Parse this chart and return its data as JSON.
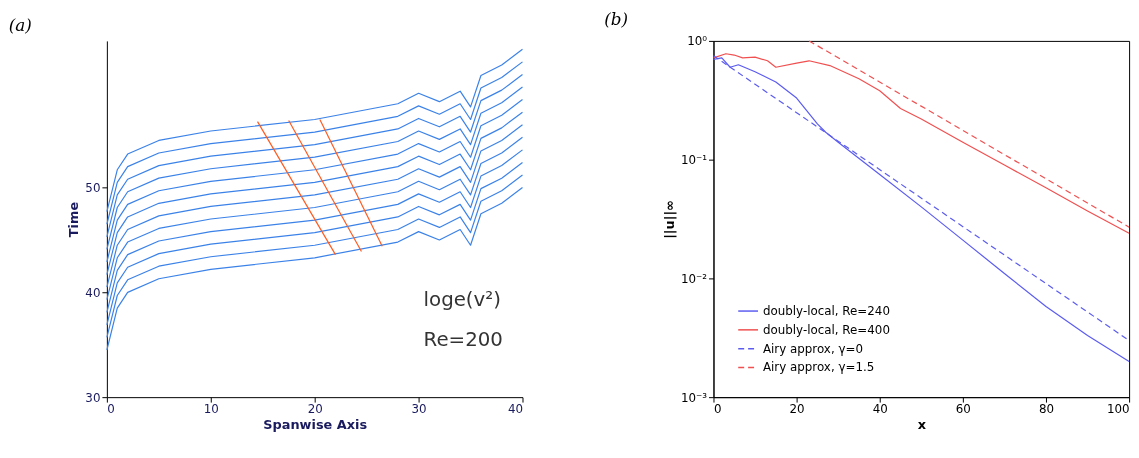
{
  "chart_data": [
    {
      "type": "line",
      "title": "(a)",
      "xlabel": "Spanwise Axis",
      "ylabel": "Time",
      "xlim": [
        0,
        40
      ],
      "xticks": [
        0,
        10,
        20,
        30,
        40
      ],
      "ylim": [
        30,
        64
      ],
      "yticks": [
        30,
        40,
        50
      ],
      "grid": false,
      "legend": false,
      "marker": "none",
      "line_style": "solid",
      "annotations": [
        "loge(v²)",
        "Re=200"
      ],
      "x": [
        0,
        1,
        2,
        5,
        10,
        20,
        28,
        30,
        32,
        34,
        35,
        36,
        38,
        40
      ],
      "series": [
        {
          "color": "#3b82e8",
          "values": [
            34.5,
            38.5,
            40,
            41.3,
            42.2,
            43.3,
            44.8,
            45.8,
            45,
            46,
            44.5,
            47.5,
            48.5,
            50
          ]
        },
        {
          "color": "#3b82e8",
          "values": [
            35.7,
            39.7,
            41.2,
            42.5,
            43.4,
            44.5,
            46,
            47,
            46.2,
            47.2,
            45.7,
            48.7,
            49.7,
            51.2
          ]
        },
        {
          "color": "#3b82e8",
          "values": [
            36.9,
            40.9,
            42.4,
            43.7,
            44.6,
            45.7,
            47.2,
            48.2,
            47.4,
            48.4,
            46.9,
            49.9,
            50.9,
            52.4
          ]
        },
        {
          "color": "#3b82e8",
          "values": [
            38.1,
            42.1,
            43.6,
            44.9,
            45.8,
            46.9,
            48.4,
            49.4,
            48.6,
            49.6,
            48.1,
            51.1,
            52.1,
            53.6
          ]
        },
        {
          "color": "#3b82e8",
          "values": [
            39.3,
            43.3,
            44.8,
            46.1,
            47,
            48.1,
            49.6,
            50.6,
            49.8,
            50.8,
            49.3,
            52.3,
            53.3,
            54.8
          ]
        },
        {
          "color": "#3b82e8",
          "values": [
            40.5,
            44.5,
            46,
            47.3,
            48.2,
            49.3,
            50.8,
            51.8,
            51,
            52,
            50.5,
            53.5,
            54.5,
            56
          ]
        },
        {
          "color": "#3b82e8",
          "values": [
            41.7,
            45.7,
            47.2,
            48.5,
            49.4,
            50.5,
            52,
            53,
            52.2,
            53.2,
            51.7,
            54.7,
            55.7,
            57.2
          ]
        },
        {
          "color": "#3b82e8",
          "values": [
            42.9,
            46.9,
            48.4,
            49.7,
            50.6,
            51.7,
            53.2,
            54.2,
            53.4,
            54.4,
            52.9,
            55.9,
            56.9,
            58.4
          ]
        },
        {
          "color": "#3b82e8",
          "values": [
            44.1,
            48.1,
            49.6,
            50.9,
            51.8,
            52.9,
            54.4,
            55.4,
            54.6,
            55.6,
            54.1,
            57.1,
            58.1,
            59.6
          ]
        },
        {
          "color": "#3b82e8",
          "values": [
            45.3,
            49.3,
            50.8,
            52.1,
            53,
            54.1,
            55.6,
            56.6,
            55.8,
            56.8,
            55.3,
            58.3,
            59.3,
            60.8
          ]
        },
        {
          "color": "#3b82e8",
          "values": [
            46.5,
            50.5,
            52,
            53.3,
            54.2,
            55.3,
            56.8,
            57.8,
            57,
            58,
            56.5,
            59.5,
            60.5,
            62
          ]
        },
        {
          "color": "#3b82e8",
          "values": [
            47.7,
            51.7,
            53.2,
            54.5,
            55.4,
            56.5,
            58,
            59,
            58.2,
            59.2,
            57.7,
            60.7,
            61.7,
            63.2
          ]
        },
        {
          "color": "#ff5a1f",
          "x": [
            14.5,
            22
          ],
          "values": [
            56.3,
            43.6
          ]
        },
        {
          "color": "#ff5a1f",
          "x": [
            17.5,
            24.5
          ],
          "values": [
            56.4,
            43.9
          ]
        },
        {
          "color": "#ff5a1f",
          "x": [
            20.5,
            26.5
          ],
          "values": [
            56.5,
            44.4
          ]
        }
      ]
    },
    {
      "type": "line",
      "title": "(b)",
      "xlabel": "x",
      "ylabel": "||u||∞",
      "log": "y",
      "xlim": [
        0,
        100
      ],
      "xticks": [
        0,
        20,
        40,
        60,
        80,
        100
      ],
      "ylim": [
        0.001,
        1
      ],
      "yticks": [
        {
          "value": 0.001,
          "label": "10⁻³"
        },
        {
          "value": 0.01,
          "label": "10⁻²"
        },
        {
          "value": 0.1,
          "label": "10⁻¹"
        },
        {
          "value": 1,
          "label": "10⁰"
        }
      ],
      "grid": false,
      "legend": "bottom left",
      "marker": "none",
      "series": [
        {
          "name": "doubly-local, Re=240",
          "color": "#5b5bf0",
          "line_style": "solid",
          "x": [
            0,
            2,
            4,
            6,
            10,
            15,
            20,
            25,
            27,
            30,
            40,
            50,
            60,
            70,
            80,
            90,
            100
          ],
          "values": [
            0.7,
            0.72,
            0.6,
            0.63,
            0.55,
            0.45,
            0.33,
            0.2,
            0.17,
            0.14,
            0.075,
            0.04,
            0.021,
            0.011,
            0.0058,
            0.0033,
            0.002
          ]
        },
        {
          "name": "doubly-local, Re=400",
          "color": "#f05050",
          "line_style": "solid",
          "x": [
            0,
            3,
            5,
            7,
            10,
            13,
            15,
            20,
            23,
            28,
            35,
            40,
            45,
            50,
            60,
            70,
            80,
            90,
            100
          ],
          "values": [
            0.72,
            0.78,
            0.76,
            0.72,
            0.73,
            0.68,
            0.6,
            0.65,
            0.68,
            0.62,
            0.48,
            0.38,
            0.27,
            0.22,
            0.14,
            0.09,
            0.058,
            0.037,
            0.024
          ]
        },
        {
          "name": "Airy approx, γ=0",
          "color": "#5b5bf0",
          "line_style": "dashed",
          "x": [
            0,
            100
          ],
          "values": [
            0.75,
            0.003
          ]
        },
        {
          "name": "Airy approx, γ=1.5",
          "color": "#f05050",
          "line_style": "dashed",
          "x": [
            23,
            100
          ],
          "values": [
            1.0,
            0.027
          ]
        }
      ]
    }
  ]
}
